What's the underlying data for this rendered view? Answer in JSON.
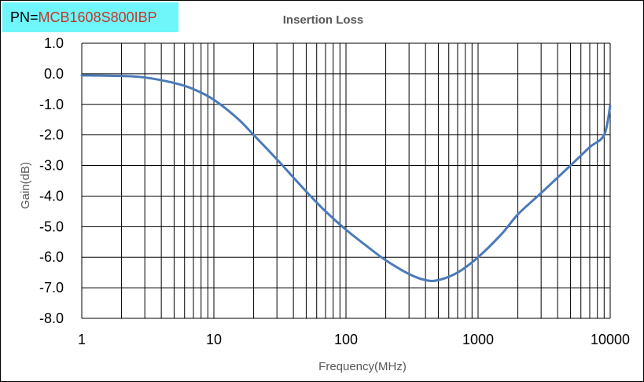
{
  "header": {
    "pn_prefix": "PN=",
    "pn_value": "MCB1608S800IBP"
  },
  "chart_data": {
    "type": "line",
    "title": "Insertion Loss",
    "xlabel": "Frequency(MHz)",
    "ylabel": "Gain(dB)",
    "xscale": "log",
    "xlim": [
      1,
      10000
    ],
    "ylim": [
      -8,
      1
    ],
    "x_ticks": [
      "1",
      "10",
      "100",
      "1000",
      "10000"
    ],
    "y_ticks": [
      "1.0",
      "0.0",
      "-1.0",
      "-2.0",
      "-3.0",
      "-4.0",
      "-5.0",
      "-6.0",
      "-7.0",
      "-8.0"
    ],
    "grid": true,
    "legend": "none",
    "line_color": "#4a7ab8",
    "series": [
      {
        "x": [
          1,
          2,
          3,
          5,
          7,
          10,
          15,
          20,
          30,
          50,
          70,
          100,
          150,
          200,
          300,
          400,
          500,
          700,
          1000,
          1500,
          2000,
          3000,
          5000,
          7000,
          9000,
          10000
        ],
        "values": [
          -0.05,
          -0.07,
          -0.12,
          -0.3,
          -0.5,
          -0.85,
          -1.45,
          -2.0,
          -2.8,
          -3.85,
          -4.5,
          -5.1,
          -5.7,
          -6.1,
          -6.55,
          -6.75,
          -6.75,
          -6.5,
          -6.0,
          -5.25,
          -4.6,
          -3.9,
          -3.0,
          -2.4,
          -2.0,
          -1.05
        ]
      }
    ]
  }
}
